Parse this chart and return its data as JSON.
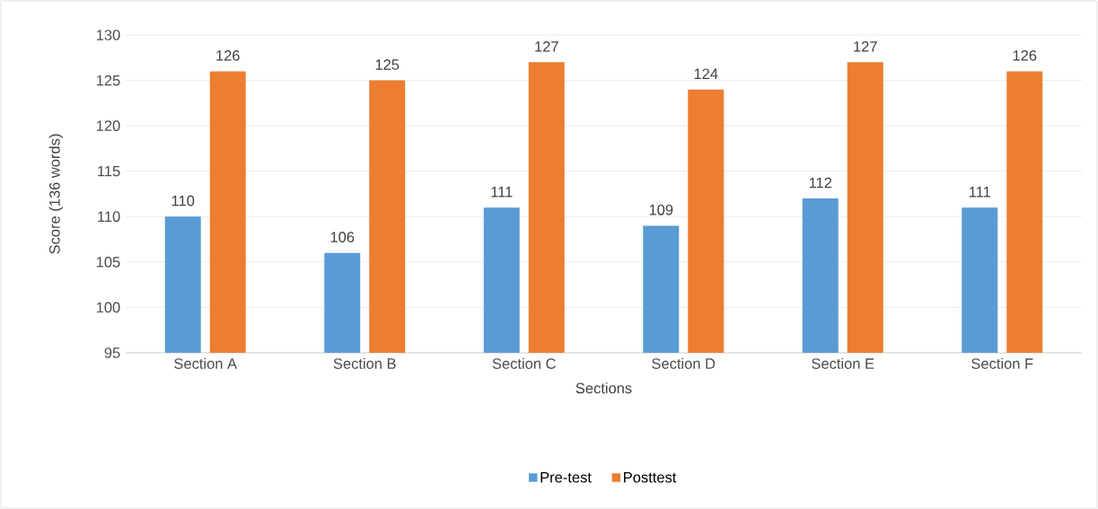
{
  "chart_data": {
    "type": "bar",
    "xlabel": "Sections",
    "ylabel": "Score (136 words)",
    "categories": [
      "Section A",
      "Section B",
      "Section C",
      "Section D",
      "Section E",
      "Section F"
    ],
    "series": [
      {
        "name": "Pre-test",
        "color": "#5b9bd5",
        "values": [
          110,
          106,
          111,
          109,
          112,
          111
        ]
      },
      {
        "name": "Posttest",
        "color": "#ed7d31",
        "values": [
          126,
          125,
          127,
          124,
          127,
          126
        ]
      }
    ],
    "ylim": [
      95,
      130
    ],
    "yticks": [
      95,
      100,
      105,
      110,
      115,
      120,
      125,
      130
    ],
    "grid": "y",
    "legend": "bottom",
    "data_labels": true
  }
}
